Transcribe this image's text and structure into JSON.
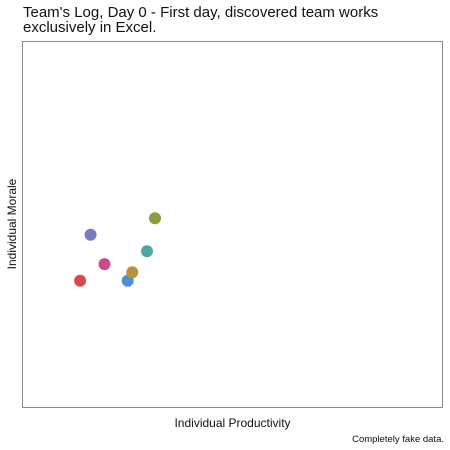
{
  "chart_data": {
    "type": "scatter",
    "title_lines": [
      "Team's Log, Day 0 - First day, discovered team works",
      "exclusively in Excel."
    ],
    "xlabel": "Individual Productivity",
    "ylabel": "Individual Morale",
    "caption": "Completely fake data.",
    "xlim": [
      0,
      10
    ],
    "ylim": [
      0,
      10
    ],
    "grid": false,
    "legend": "none",
    "points": [
      {
        "x": 1.38,
        "y": 3.47,
        "color": "#d44a4f"
      },
      {
        "x": 1.63,
        "y": 4.72,
        "color": "#7a79c2"
      },
      {
        "x": 1.96,
        "y": 3.92,
        "color": "#cc4a8c"
      },
      {
        "x": 2.51,
        "y": 3.47,
        "color": "#4a90d2"
      },
      {
        "x": 2.62,
        "y": 3.7,
        "color": "#b9923a"
      },
      {
        "x": 2.97,
        "y": 4.27,
        "color": "#4aa8a0"
      },
      {
        "x": 3.16,
        "y": 5.17,
        "color": "#8a9e3a"
      }
    ]
  }
}
